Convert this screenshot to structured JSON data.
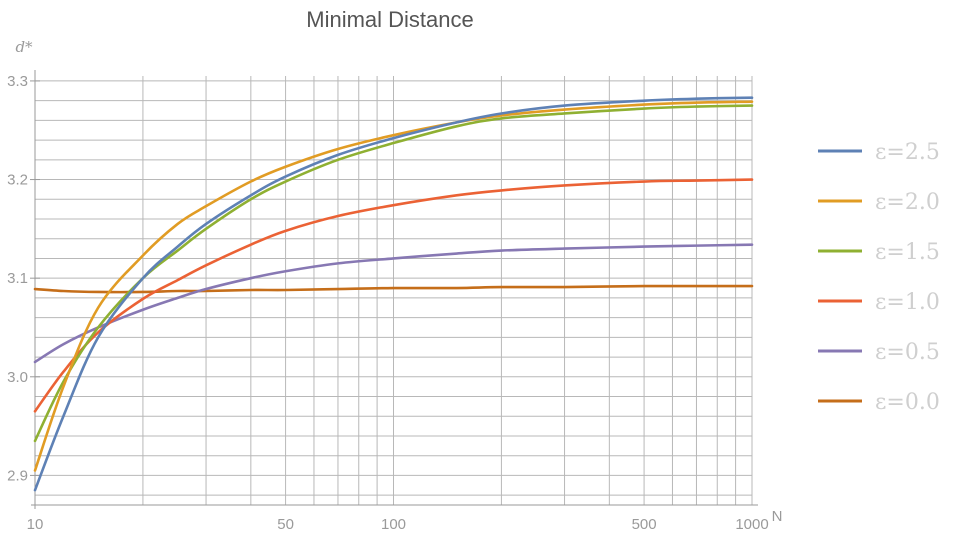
{
  "chart_data": {
    "type": "line",
    "title": "Minimal Distance",
    "ylabel": "d*",
    "xlabel": "N",
    "xscale": "log",
    "xlim": [
      10,
      1000
    ],
    "ylim": [
      2.87,
      3.305
    ],
    "x_ticks": [
      10,
      50,
      100,
      500,
      1000
    ],
    "y_ticks": [
      2.9,
      3.0,
      3.1,
      3.2,
      3.3
    ],
    "y_tick_labels": [
      "2.9",
      "3.0",
      "3.1",
      "3.2",
      "3.3"
    ],
    "grid": true,
    "legend_position": "right",
    "series": [
      {
        "name": "ε=2.5",
        "color": "#5e81b5",
        "x": [
          10,
          12,
          15,
          20,
          25,
          30,
          40,
          50,
          70,
          100,
          150,
          200,
          300,
          500,
          700,
          1000
        ],
        "y": [
          2.885,
          2.96,
          3.04,
          3.1,
          3.132,
          3.155,
          3.184,
          3.203,
          3.225,
          3.242,
          3.258,
          3.267,
          3.275,
          3.28,
          3.282,
          3.283
        ]
      },
      {
        "name": "ε=2.0",
        "color": "#e19c24",
        "x": [
          10,
          12,
          15,
          20,
          25,
          30,
          40,
          50,
          70,
          100,
          150,
          200,
          300,
          500,
          700,
          1000
        ],
        "y": [
          2.905,
          2.99,
          3.07,
          3.123,
          3.155,
          3.173,
          3.198,
          3.213,
          3.231,
          3.245,
          3.258,
          3.265,
          3.271,
          3.276,
          3.278,
          3.279
        ]
      },
      {
        "name": "ε=1.5",
        "color": "#8fb032",
        "x": [
          10,
          12,
          15,
          20,
          25,
          30,
          40,
          50,
          70,
          100,
          150,
          200,
          300,
          500,
          700,
          1000
        ],
        "y": [
          2.935,
          2.995,
          3.05,
          3.1,
          3.128,
          3.15,
          3.18,
          3.198,
          3.22,
          3.237,
          3.254,
          3.262,
          3.267,
          3.272,
          3.274,
          3.275
        ]
      },
      {
        "name": "ε=1.0",
        "color": "#eb6235",
        "x": [
          10,
          12,
          15,
          20,
          25,
          30,
          40,
          50,
          70,
          100,
          150,
          200,
          300,
          500,
          700,
          1000
        ],
        "y": [
          2.965,
          3.005,
          3.045,
          3.079,
          3.098,
          3.113,
          3.134,
          3.148,
          3.163,
          3.174,
          3.184,
          3.189,
          3.194,
          3.198,
          3.199,
          3.2
        ]
      },
      {
        "name": "ε=0.5",
        "color": "#8778b3",
        "x": [
          10,
          12,
          15,
          20,
          25,
          30,
          40,
          50,
          70,
          100,
          150,
          200,
          300,
          500,
          700,
          1000
        ],
        "y": [
          3.015,
          3.033,
          3.05,
          3.068,
          3.08,
          3.089,
          3.1,
          3.107,
          3.115,
          3.12,
          3.125,
          3.128,
          3.13,
          3.132,
          3.133,
          3.134
        ]
      },
      {
        "name": "ε=0.0",
        "color": "#c56e1a",
        "x": [
          10,
          12,
          15,
          20,
          25,
          30,
          40,
          50,
          70,
          100,
          150,
          200,
          300,
          500,
          700,
          1000
        ],
        "y": [
          3.089,
          3.087,
          3.086,
          3.086,
          3.087,
          3.087,
          3.088,
          3.088,
          3.089,
          3.09,
          3.09,
          3.091,
          3.091,
          3.092,
          3.092,
          3.092
        ]
      }
    ]
  }
}
